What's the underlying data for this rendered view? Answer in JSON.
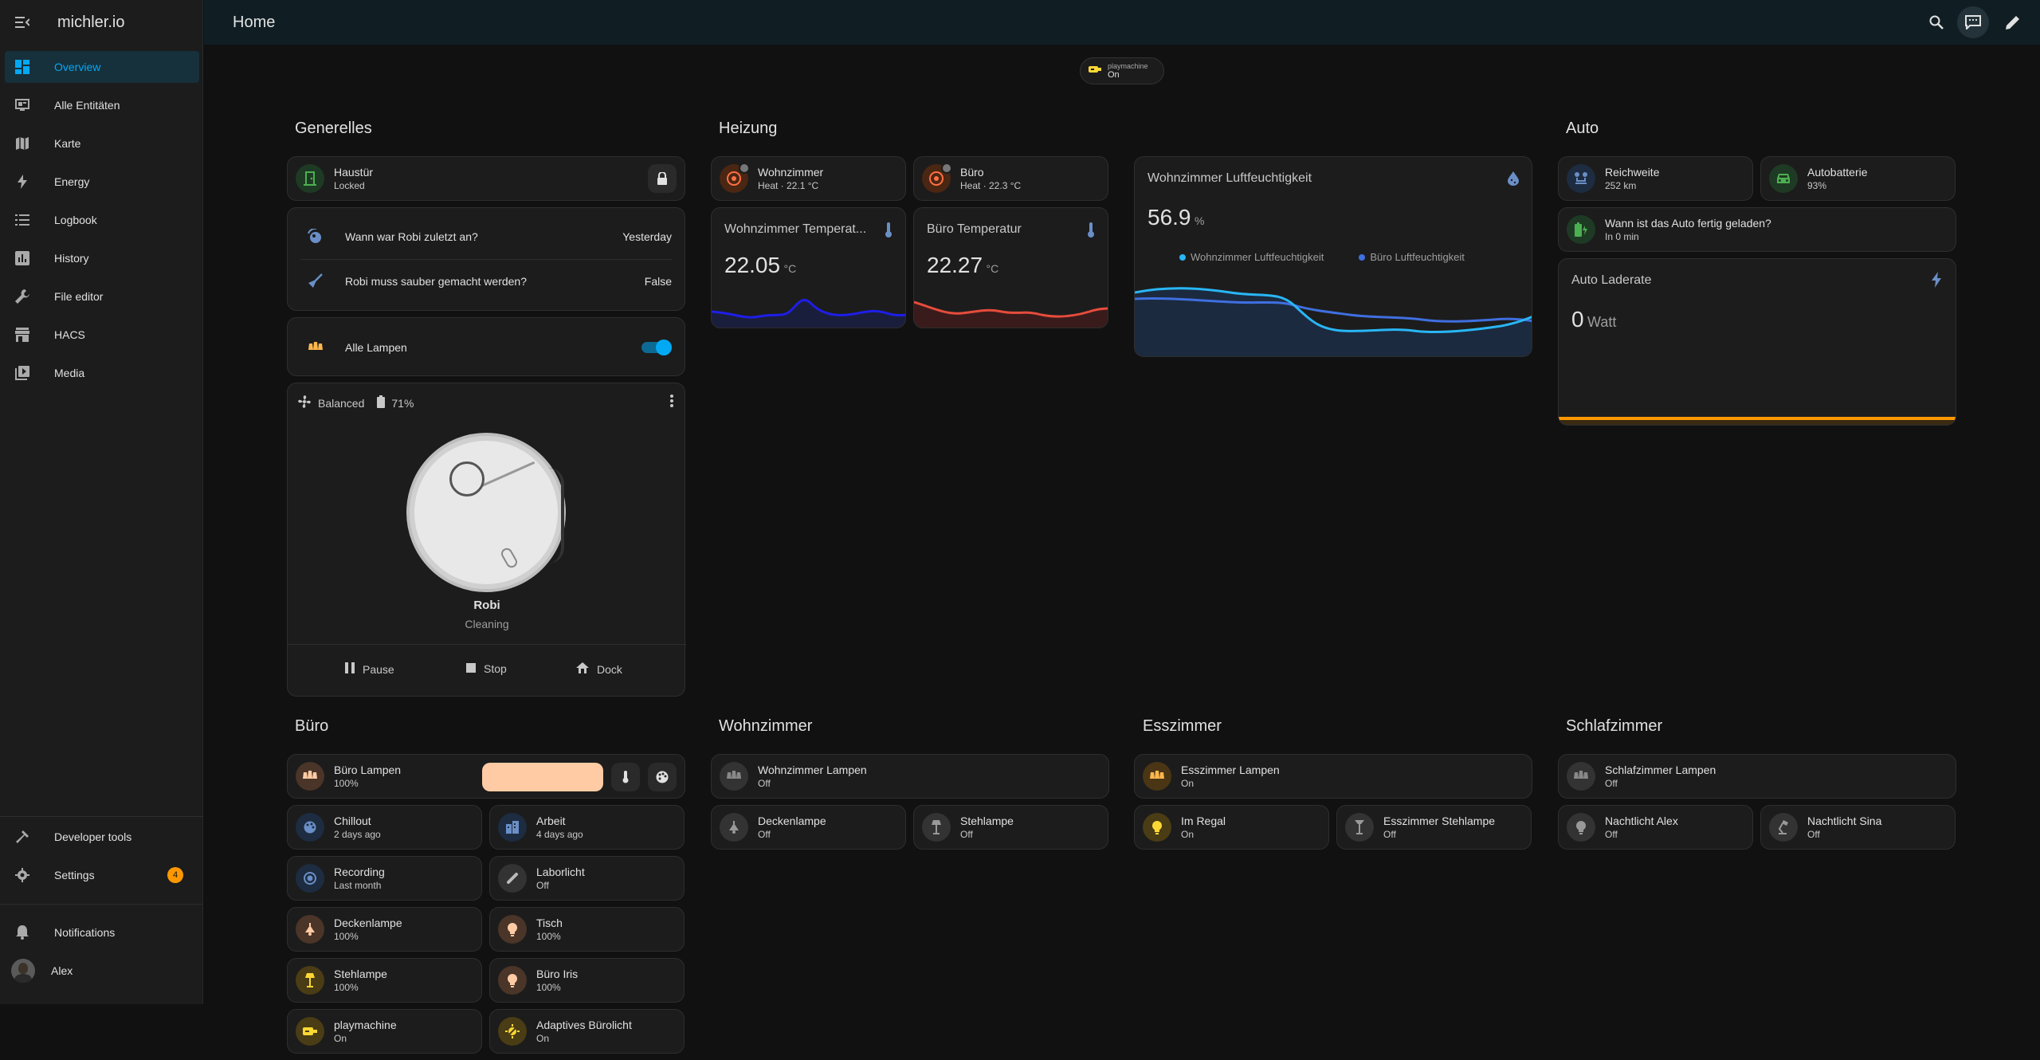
{
  "app": {
    "title": "michler.io"
  },
  "sidebar": {
    "items": [
      {
        "label": "Overview"
      },
      {
        "label": "Alle Entitäten"
      },
      {
        "label": "Karte"
      },
      {
        "label": "Energy"
      },
      {
        "label": "Logbook"
      },
      {
        "label": "History"
      },
      {
        "label": "File editor"
      },
      {
        "label": "HACS"
      },
      {
        "label": "Media"
      }
    ],
    "developer_tools": "Developer tools",
    "settings": "Settings",
    "settings_badge": "4",
    "notifications": "Notifications",
    "user": "Alex"
  },
  "topbar": {
    "title": "Home"
  },
  "chip": {
    "label": "playmachine",
    "state": "On"
  },
  "sections": {
    "generelles": "Generelles",
    "heizung": "Heizung",
    "auto": "Auto",
    "buero": "Büro",
    "wohnzimmer": "Wohnzimmer",
    "esszimmer": "Esszimmer",
    "schlafzimmer": "Schlafzimmer"
  },
  "generelles": {
    "haustuer": {
      "name": "Haustür",
      "state": "Locked"
    },
    "robi_last": {
      "label": "Wann war Robi zuletzt an?",
      "value": "Yesterday"
    },
    "robi_clean": {
      "label": "Robi muss sauber gemacht werden?",
      "value": "False"
    },
    "alle_lampen": {
      "label": "Alle Lampen"
    },
    "vacuum": {
      "fan": "Balanced",
      "battery": "71%",
      "name": "Robi",
      "status": "Cleaning",
      "pause": "Pause",
      "stop": "Stop",
      "dock": "Dock"
    }
  },
  "heizung": {
    "wohnzimmer": {
      "name": "Wohnzimmer",
      "state": "Heat · 22.1 °C"
    },
    "buero": {
      "name": "Büro",
      "state": "Heat · 22.3 °C"
    },
    "wz_temp": {
      "title": "Wohnzimmer Temperat...",
      "value": "22.05",
      "unit": "°C"
    },
    "bu_temp": {
      "title": "Büro Temperatur",
      "value": "22.27",
      "unit": "°C"
    },
    "humidity": {
      "title": "Wohnzimmer Luftfeuchtigkeit",
      "value": "56.9",
      "unit": "%",
      "legend1": "Wohnzimmer Luftfeuchtigkeit",
      "legend2": "Büro Luftfeuchtigkeit"
    }
  },
  "auto": {
    "reichweite": {
      "name": "Reichweite",
      "state": "252 km"
    },
    "autobatterie": {
      "name": "Autobatterie",
      "state": "93%"
    },
    "geladen": {
      "name": "Wann ist das Auto fertig geladen?",
      "state": "In 0 min"
    },
    "laderate": {
      "title": "Auto Laderate",
      "value": "0",
      "unit": "Watt"
    }
  },
  "buero": {
    "lampen": {
      "name": "Büro Lampen",
      "state": "100%"
    },
    "chillout": {
      "name": "Chillout",
      "state": "2 days ago"
    },
    "arbeit": {
      "name": "Arbeit",
      "state": "4 days ago"
    },
    "recording": {
      "name": "Recording",
      "state": "Last month"
    },
    "laborlicht": {
      "name": "Laborlicht",
      "state": "Off"
    },
    "deckenlampe": {
      "name": "Deckenlampe",
      "state": "100%"
    },
    "tisch": {
      "name": "Tisch",
      "state": "100%"
    },
    "stehlampe": {
      "name": "Stehlampe",
      "state": "100%"
    },
    "iris": {
      "name": "Büro Iris",
      "state": "100%"
    },
    "playmachine": {
      "name": "playmachine",
      "state": "On"
    },
    "adaptiv": {
      "name": "Adaptives Bürolicht",
      "state": "On"
    }
  },
  "wohnzimmer": {
    "lampen": {
      "name": "Wohnzimmer Lampen",
      "state": "Off"
    },
    "deckenlampe": {
      "name": "Deckenlampe",
      "state": "Off"
    },
    "stehlampe": {
      "name": "Stehlampe",
      "state": "Off"
    }
  },
  "esszimmer": {
    "lampen": {
      "name": "Esszimmer Lampen",
      "state": "On"
    },
    "regal": {
      "name": "Im Regal",
      "state": "On"
    },
    "stehlampe": {
      "name": "Esszimmer Stehlampe",
      "state": "Off"
    }
  },
  "schlafzimmer": {
    "lampen": {
      "name": "Schlafzimmer Lampen",
      "state": "Off"
    },
    "alex": {
      "name": "Nachtlicht Alex",
      "state": "Off"
    },
    "sina": {
      "name": "Nachtlicht Sina",
      "state": "Off"
    }
  },
  "colors": {
    "accent": "#03a9f4",
    "warning": "#ff9800",
    "background": "#111111",
    "card": "#1c1c1c"
  }
}
